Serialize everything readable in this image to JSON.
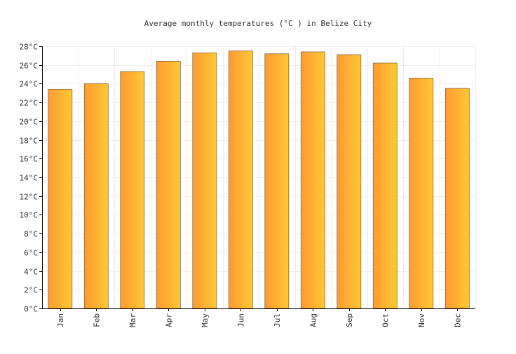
{
  "chart_data": {
    "type": "bar",
    "title": "Average monthly temperatures (°C ) in Belize City",
    "xlabel": "",
    "ylabel": "",
    "categories": [
      "Jan",
      "Feb",
      "Mar",
      "Apr",
      "May",
      "Jun",
      "Jul",
      "Aug",
      "Sep",
      "Oct",
      "Nov",
      "Dec"
    ],
    "values": [
      23.4,
      24.0,
      25.3,
      26.4,
      27.3,
      27.5,
      27.2,
      27.4,
      27.1,
      26.2,
      24.6,
      23.5
    ],
    "ylim": [
      0,
      28
    ],
    "ytick_step": 2,
    "ytick_labels": [
      "0°C",
      "2°C",
      "4°C",
      "6°C",
      "8°C",
      "10°C",
      "12°C",
      "14°C",
      "16°C",
      "18°C",
      "20°C",
      "22°C",
      "24°C",
      "26°C",
      "28°C"
    ],
    "grid": true,
    "legend": "none",
    "colors": {
      "bar_left": "#ff9a33",
      "bar_right": "#ffc933",
      "bar_stroke": "#8a6a3a",
      "grid": "#eeeeee",
      "axis": "#000000"
    }
  }
}
